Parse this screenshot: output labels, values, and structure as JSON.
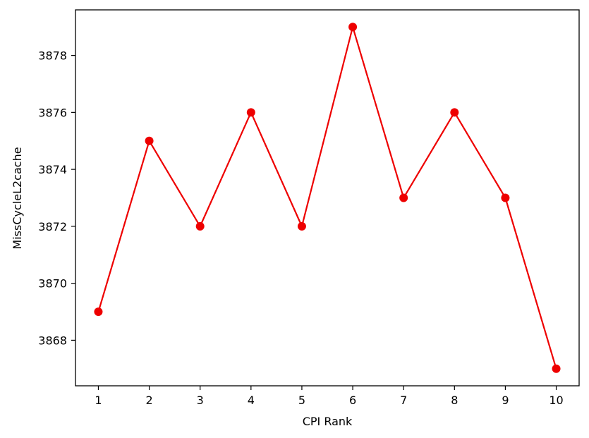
{
  "chart_data": {
    "type": "line",
    "title": "",
    "xlabel": "CPI Rank",
    "ylabel": "MissCycleL2cache",
    "x": [
      1,
      2,
      3,
      4,
      5,
      6,
      7,
      8,
      9,
      10
    ],
    "series": [
      {
        "values": [
          3869,
          3875,
          3872,
          3876,
          3872,
          3879,
          3873,
          3876,
          3873,
          3867
        ],
        "color": "#ee0000",
        "marker": "circle"
      }
    ],
    "xticks": [
      1,
      2,
      3,
      4,
      5,
      6,
      7,
      8,
      9,
      10
    ],
    "xtick_labels": [
      "1",
      "2",
      "3",
      "4",
      "5",
      "6",
      "7",
      "8",
      "9",
      "10"
    ],
    "yticks": [
      3868,
      3870,
      3872,
      3874,
      3876,
      3878
    ],
    "ytick_labels": [
      "3868",
      "3870",
      "3872",
      "3874",
      "3876",
      "3878"
    ],
    "xlim": [
      0.55,
      10.45
    ],
    "ylim": [
      3866.4,
      3879.6
    ],
    "grid": false,
    "legend": "none"
  }
}
